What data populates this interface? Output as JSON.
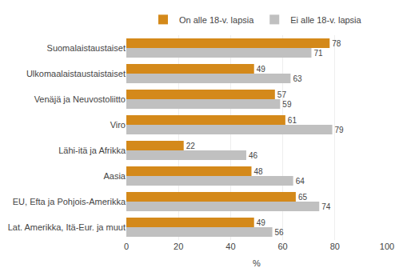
{
  "chart_data": {
    "type": "bar",
    "orientation": "horizontal",
    "categories": [
      "Suomalaistaustaiset",
      "Ulkomaalaistaustaistaiset",
      "Venäjä ja Neuvostoliitto",
      "Viro",
      "Lähi-itä ja Afrikka",
      "Aasia",
      "EU, Efta ja Pohjois-Amerikka",
      "Lat. Amerikka, Itä-Eur. ja muut"
    ],
    "series": [
      {
        "name": "On alle 18-v. lapsia",
        "color": "#d4891a",
        "values": [
          78,
          49,
          57,
          61,
          22,
          48,
          65,
          49
        ]
      },
      {
        "name": "Ei alle 18-v. lapsia",
        "color": "#c0c0c0",
        "values": [
          71,
          63,
          59,
          79,
          46,
          64,
          74,
          56
        ]
      }
    ],
    "xlabel": "%",
    "xlim": [
      0,
      100
    ],
    "xticks": [
      0,
      20,
      40,
      60,
      80,
      100
    ],
    "grid": true,
    "data_labels": true,
    "legend": "top"
  }
}
